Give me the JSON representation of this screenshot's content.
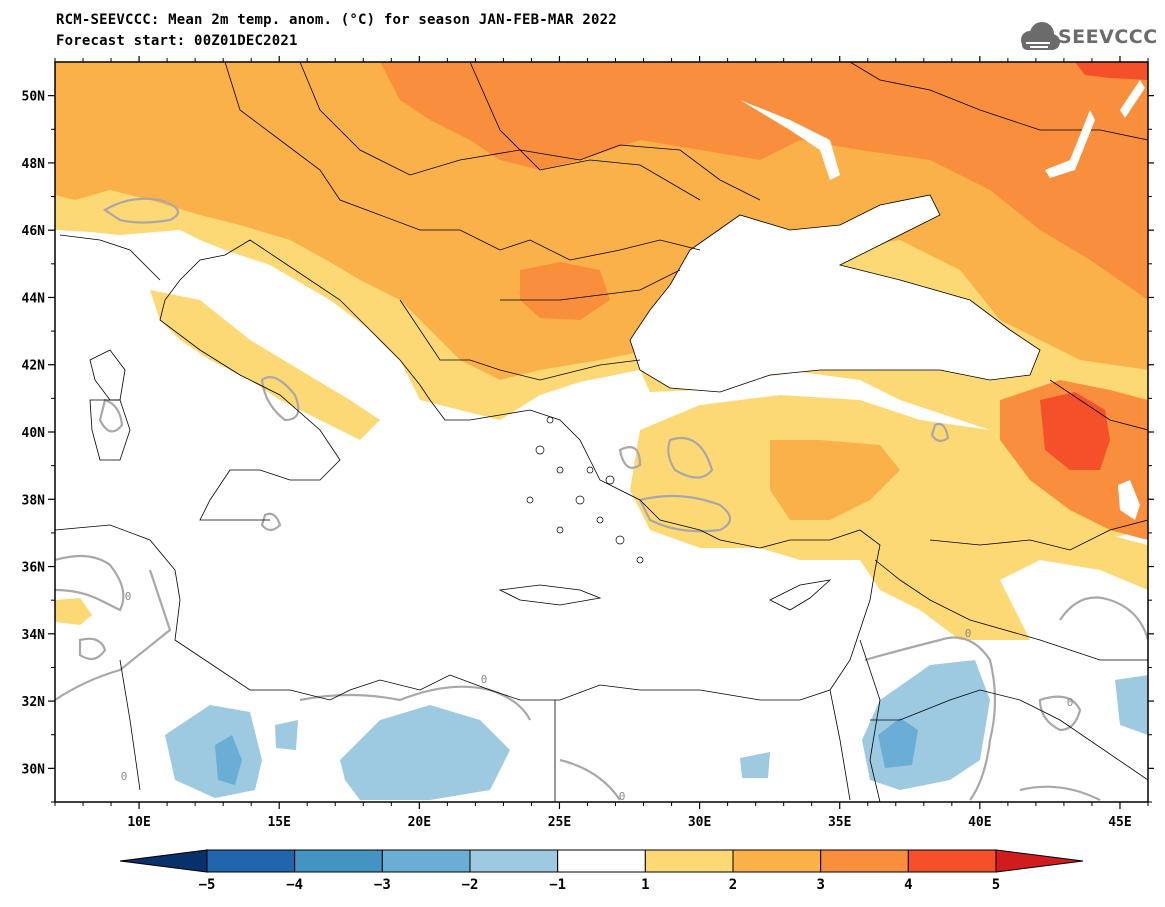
{
  "header": {
    "title": "RCM-SEEVCCC: Mean 2m temp. anom. (°C) for season JAN-FEB-MAR 2022",
    "subtitle": "Forecast start: 00Z01DEC2021",
    "logo_text": "SEEVCCC"
  },
  "map": {
    "lat_range": [
      29,
      51
    ],
    "lon_range": [
      7,
      46
    ],
    "lat_ticks": [
      "50N",
      "48N",
      "46N",
      "44N",
      "42N",
      "40N",
      "38N",
      "36N",
      "34N",
      "32N",
      "30N"
    ],
    "lon_ticks": [
      "10E",
      "15E",
      "20E",
      "25E",
      "30E",
      "35E",
      "40E",
      "45E"
    ],
    "contour_label": "0"
  },
  "colorbar": {
    "tick_labels": [
      "−5",
      "−4",
      "−3",
      "−2",
      "−1",
      "1",
      "2",
      "3",
      "4",
      "5"
    ],
    "colors": [
      "#08306b",
      "#2166ac",
      "#4393c3",
      "#6aaed6",
      "#9ecae1",
      "#ffffff",
      "#fdd976",
      "#fbb14a",
      "#f98e3c",
      "#f4512b",
      "#d01c1c"
    ]
  }
}
